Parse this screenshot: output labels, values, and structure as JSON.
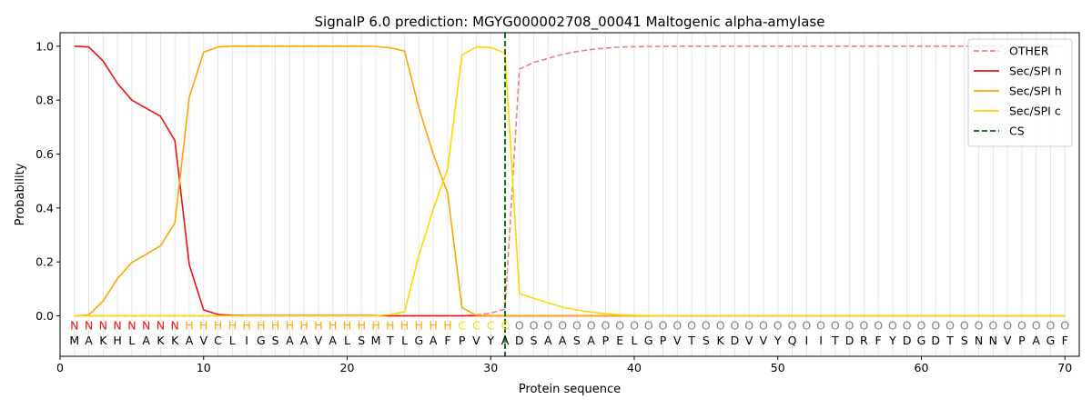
{
  "chart_data": {
    "type": "line",
    "title": "SignalP 6.0 prediction: MGYG000002708_00041 Maltogenic alpha-amylase",
    "xlabel": "Protein sequence",
    "ylabel": "Probability",
    "xlim": [
      0,
      71
    ],
    "ylim": [
      -0.15,
      1.05
    ],
    "x_ticks": [
      0,
      10,
      20,
      30,
      40,
      50,
      60,
      70
    ],
    "y_ticks": [
      0.0,
      0.2,
      0.4,
      0.6,
      0.8,
      1.0
    ],
    "x_tick_labels": [
      "0",
      "10",
      "20",
      "30",
      "40",
      "50",
      "60",
      "70"
    ],
    "y_tick_labels": [
      "0.0",
      "0.2",
      "0.4",
      "0.6",
      "0.8",
      "1.0"
    ],
    "grid": "vertical lines at each residue",
    "legend_position": "top-right",
    "x": [
      1,
      2,
      3,
      4,
      5,
      6,
      7,
      8,
      9,
      10,
      11,
      12,
      13,
      14,
      15,
      16,
      17,
      18,
      19,
      20,
      21,
      22,
      23,
      24,
      25,
      26,
      27,
      28,
      29,
      30,
      31,
      32,
      33,
      34,
      35,
      36,
      37,
      38,
      39,
      40,
      41,
      42,
      43,
      44,
      45,
      46,
      47,
      48,
      49,
      50,
      51,
      52,
      53,
      54,
      55,
      56,
      57,
      58,
      59,
      60,
      61,
      62,
      63,
      64,
      65,
      66,
      67,
      68,
      69,
      70
    ],
    "series": [
      {
        "name": "OTHER",
        "color": "#f08080",
        "dash": true,
        "values": [
          0,
          0,
          0,
          0,
          0,
          0,
          0,
          0,
          0,
          0,
          0,
          0,
          0,
          0,
          0,
          0,
          0,
          0,
          0,
          0,
          0,
          0,
          0,
          0,
          0,
          0,
          0,
          0,
          0.003,
          0.01,
          0.025,
          0.915,
          0.94,
          0.955,
          0.97,
          0.98,
          0.988,
          0.993,
          0.997,
          0.998,
          0.999,
          0.999,
          1,
          1,
          1,
          1,
          1,
          1,
          1,
          1,
          1,
          1,
          1,
          1,
          1,
          1,
          1,
          1,
          1,
          1,
          1,
          1,
          1,
          1,
          1,
          1,
          1,
          1,
          1,
          1
        ]
      },
      {
        "name": "Sec/SPI n",
        "color": "#ee1111",
        "dash": false,
        "values": [
          1.0,
          0.997,
          0.945,
          0.862,
          0.8,
          0.77,
          0.74,
          0.65,
          0.19,
          0.022,
          0.005,
          0.002,
          0.001,
          0.001,
          0.001,
          0.001,
          0.001,
          0.001,
          0.001,
          0.001,
          0.001,
          0.001,
          0.0,
          0.0,
          0.0,
          0.0,
          0.0,
          0.0,
          0.0,
          0.0,
          0.0,
          0.0,
          0.0,
          0.0,
          0.0,
          0.0,
          0.0,
          0.0,
          0.0,
          0.0,
          0.0,
          0.0,
          0.0,
          0.0,
          0.0,
          0.0,
          0.0,
          0.0,
          0.0,
          0.0,
          0.0,
          0.0,
          0.0,
          0.0,
          0.0,
          0.0,
          0.0,
          0.0,
          0.0,
          0.0,
          0.0,
          0.0,
          0.0,
          0.0,
          0.0,
          0.0,
          0.0,
          0.0,
          0.0,
          0.0
        ]
      },
      {
        "name": "Sec/SPI h",
        "color": "#ffa500",
        "dash": false,
        "values": [
          0.0,
          0.003,
          0.055,
          0.138,
          0.198,
          0.228,
          0.26,
          0.345,
          0.81,
          0.978,
          0.997,
          1.0,
          1.0,
          1.0,
          1.0,
          1.0,
          1.0,
          1.0,
          1.0,
          1.0,
          1.0,
          0.999,
          0.994,
          0.982,
          0.77,
          0.6,
          0.455,
          0.03,
          0.002,
          0.001,
          0.0,
          0.0,
          0.0,
          0.0,
          0.0,
          0.0,
          0.0,
          0.0,
          0.0,
          0.0,
          0.0,
          0.0,
          0.0,
          0.0,
          0.0,
          0.0,
          0.0,
          0.0,
          0.0,
          0.0,
          0.0,
          0.0,
          0.0,
          0.0,
          0.0,
          0.0,
          0.0,
          0.0,
          0.0,
          0.0,
          0.0,
          0.0,
          0.0,
          0.0,
          0.0,
          0.0,
          0.0,
          0.0,
          0.0,
          0.0
        ]
      },
      {
        "name": "Sec/SPI c",
        "color": "#ffd700",
        "dash": false,
        "values": [
          0.0,
          0.0,
          0.0,
          0.0,
          0.0,
          0.0,
          0.0,
          0.0,
          0.0,
          0.0,
          0.0,
          0.0,
          0.0,
          0.0,
          0.0,
          0.0,
          0.0,
          0.0,
          0.0,
          0.0,
          0.0,
          0.0,
          0.005,
          0.015,
          0.225,
          0.395,
          0.545,
          0.968,
          0.997,
          0.995,
          0.975,
          0.082,
          0.065,
          0.048,
          0.032,
          0.022,
          0.014,
          0.008,
          0.004,
          0.002,
          0.001,
          0.0,
          0.0,
          0.0,
          0.0,
          0.0,
          0.0,
          0.0,
          0.0,
          0.0,
          0.0,
          0.0,
          0.0,
          0.0,
          0.0,
          0.0,
          0.0,
          0.0,
          0.0,
          0.0,
          0.0,
          0.0,
          0.0,
          0.0,
          0.0,
          0.0,
          0.0,
          0.0,
          0.0,
          0.0
        ]
      }
    ],
    "cleavage_site": {
      "name": "CS",
      "x": 31,
      "color": "#006400"
    },
    "sequence": "MAKHLAKKAVCLIGSAAVALSMTLGAFPVYADSAASAPELGPVTSKDVVYQIITDRFYDGDTSNNVPAGF",
    "labels": "NNNNNNNNHHHHHHHHHHHHHHHHHHHCCCCOOOOOOOOOOOOOOOOOOOOOOOOOOOOOOOOOOOOOOO",
    "label_colors": {
      "N": "#ee1111",
      "H": "#ffa500",
      "C": "#ffd700",
      "O": "#808080"
    }
  }
}
